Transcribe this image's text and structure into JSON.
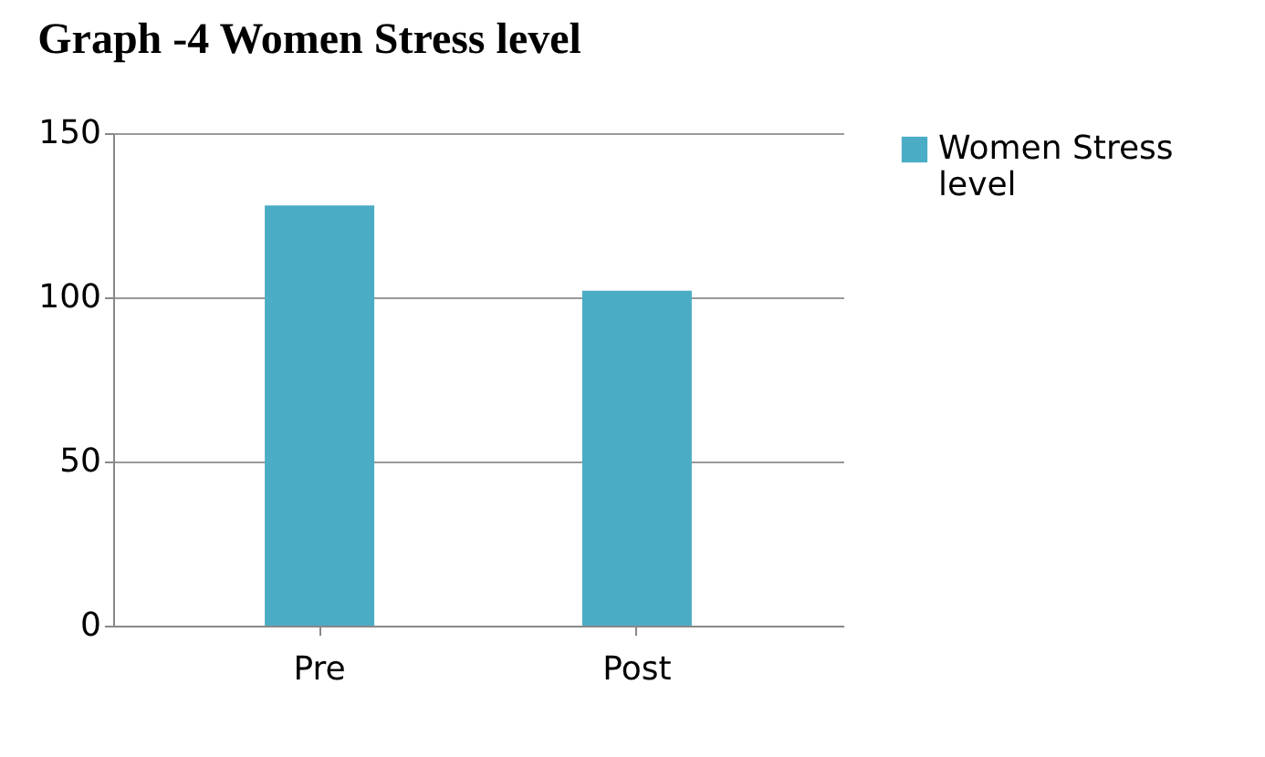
{
  "chart_data": {
    "type": "bar",
    "title": "Graph -4   Women Stress  level",
    "categories": [
      "Pre",
      "Post"
    ],
    "series": [
      {
        "name": "Women Stress level",
        "color": "#4bacc6",
        "values": [
          128,
          102
        ]
      }
    ],
    "ylim": [
      0,
      150
    ],
    "yticks": [
      0,
      50,
      100,
      150
    ],
    "grid": "y",
    "legend": "right"
  }
}
